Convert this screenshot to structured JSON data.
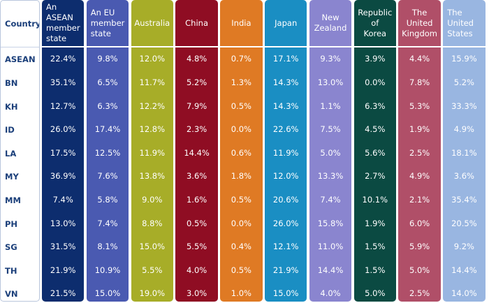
{
  "table": {
    "header_label": "Country",
    "columns": [
      {
        "label": "An ASEAN\nmember\nstate",
        "color": "#0d2d6e",
        "align": "left"
      },
      {
        "label": "An EU\nmember\nstate",
        "color": "#4a5ab1",
        "align": "left"
      },
      {
        "label": "Australia",
        "color": "#a7ad28",
        "align": "center"
      },
      {
        "label": "China",
        "color": "#8f0d23",
        "align": "center"
      },
      {
        "label": "India",
        "color": "#df7a24",
        "align": "center"
      },
      {
        "label": "Japan",
        "color": "#1a8ec3",
        "align": "center"
      },
      {
        "label": "New\nZealand",
        "color": "#8a85cf",
        "align": "center"
      },
      {
        "label": "Republic of\nKorea",
        "color": "#0b4a42",
        "align": "center"
      },
      {
        "label": "The United\nKingdom",
        "color": "#b04f68",
        "align": "center"
      },
      {
        "label": "The United\nStates",
        "color": "#99b6e1",
        "align": "left"
      }
    ],
    "rows": [
      "ASEAN",
      "BN",
      "KH",
      "ID",
      "LA",
      "MY",
      "MM",
      "PH",
      "SG",
      "TH",
      "VN"
    ]
  },
  "chart_data": {
    "type": "table",
    "columns": [
      "Country",
      "An ASEAN member state",
      "An EU member state",
      "Australia",
      "China",
      "India",
      "Japan",
      "New Zealand",
      "Republic of Korea",
      "The United Kingdom",
      "The United States"
    ],
    "rows": [
      {
        "country": "ASEAN",
        "values": [
          "22.4%",
          "9.8%",
          "12.0%",
          "4.8%",
          "0.7%",
          "17.1%",
          "9.3%",
          "3.9%",
          "4.4%",
          "15.9%"
        ]
      },
      {
        "country": "BN",
        "values": [
          "35.1%",
          "6.5%",
          "11.7%",
          "5.2%",
          "1.3%",
          "14.3%",
          "13.0%",
          "0.0%",
          "7.8%",
          "5.2%"
        ]
      },
      {
        "country": "KH",
        "values": [
          "12.7%",
          "6.3%",
          "12.2%",
          "7.9%",
          "0.5%",
          "14.3%",
          "1.1%",
          "6.3%",
          "5.3%",
          "33.3%"
        ]
      },
      {
        "country": "ID",
        "values": [
          "26.0%",
          "17.4%",
          "12.8%",
          "2.3%",
          "0.0%",
          "22.6%",
          "7.5%",
          "4.5%",
          "1.9%",
          "4.9%"
        ]
      },
      {
        "country": "LA",
        "values": [
          "17.5%",
          "12.5%",
          "11.9%",
          "14.4%",
          "0.6%",
          "11.9%",
          "5.0%",
          "5.6%",
          "2.5%",
          "18.1%"
        ]
      },
      {
        "country": "MY",
        "values": [
          "36.9%",
          "7.6%",
          "13.8%",
          "3.6%",
          "1.8%",
          "12.0%",
          "13.3%",
          "2.7%",
          "4.9%",
          "3.6%"
        ]
      },
      {
        "country": "MM",
        "values": [
          "7.4%",
          "5.8%",
          "9.0%",
          "1.6%",
          "0.5%",
          "20.6%",
          "7.4%",
          "10.1%",
          "2.1%",
          "35.4%"
        ]
      },
      {
        "country": "PH",
        "values": [
          "13.0%",
          "7.4%",
          "8.8%",
          "0.5%",
          "0.0%",
          "26.0%",
          "15.8%",
          "1.9%",
          "6.0%",
          "20.5%"
        ]
      },
      {
        "country": "SG",
        "values": [
          "31.5%",
          "8.1%",
          "15.0%",
          "5.5%",
          "0.4%",
          "12.1%",
          "11.0%",
          "1.5%",
          "5.9%",
          "9.2%"
        ]
      },
      {
        "country": "TH",
        "values": [
          "21.9%",
          "10.9%",
          "5.5%",
          "4.0%",
          "0.5%",
          "21.9%",
          "14.4%",
          "1.5%",
          "5.0%",
          "14.4%"
        ]
      },
      {
        "country": "VN",
        "values": [
          "21.5%",
          "15.0%",
          "19.0%",
          "3.0%",
          "1.0%",
          "15.0%",
          "4.0%",
          "5.0%",
          "2.5%",
          "14.0%"
        ]
      }
    ]
  }
}
